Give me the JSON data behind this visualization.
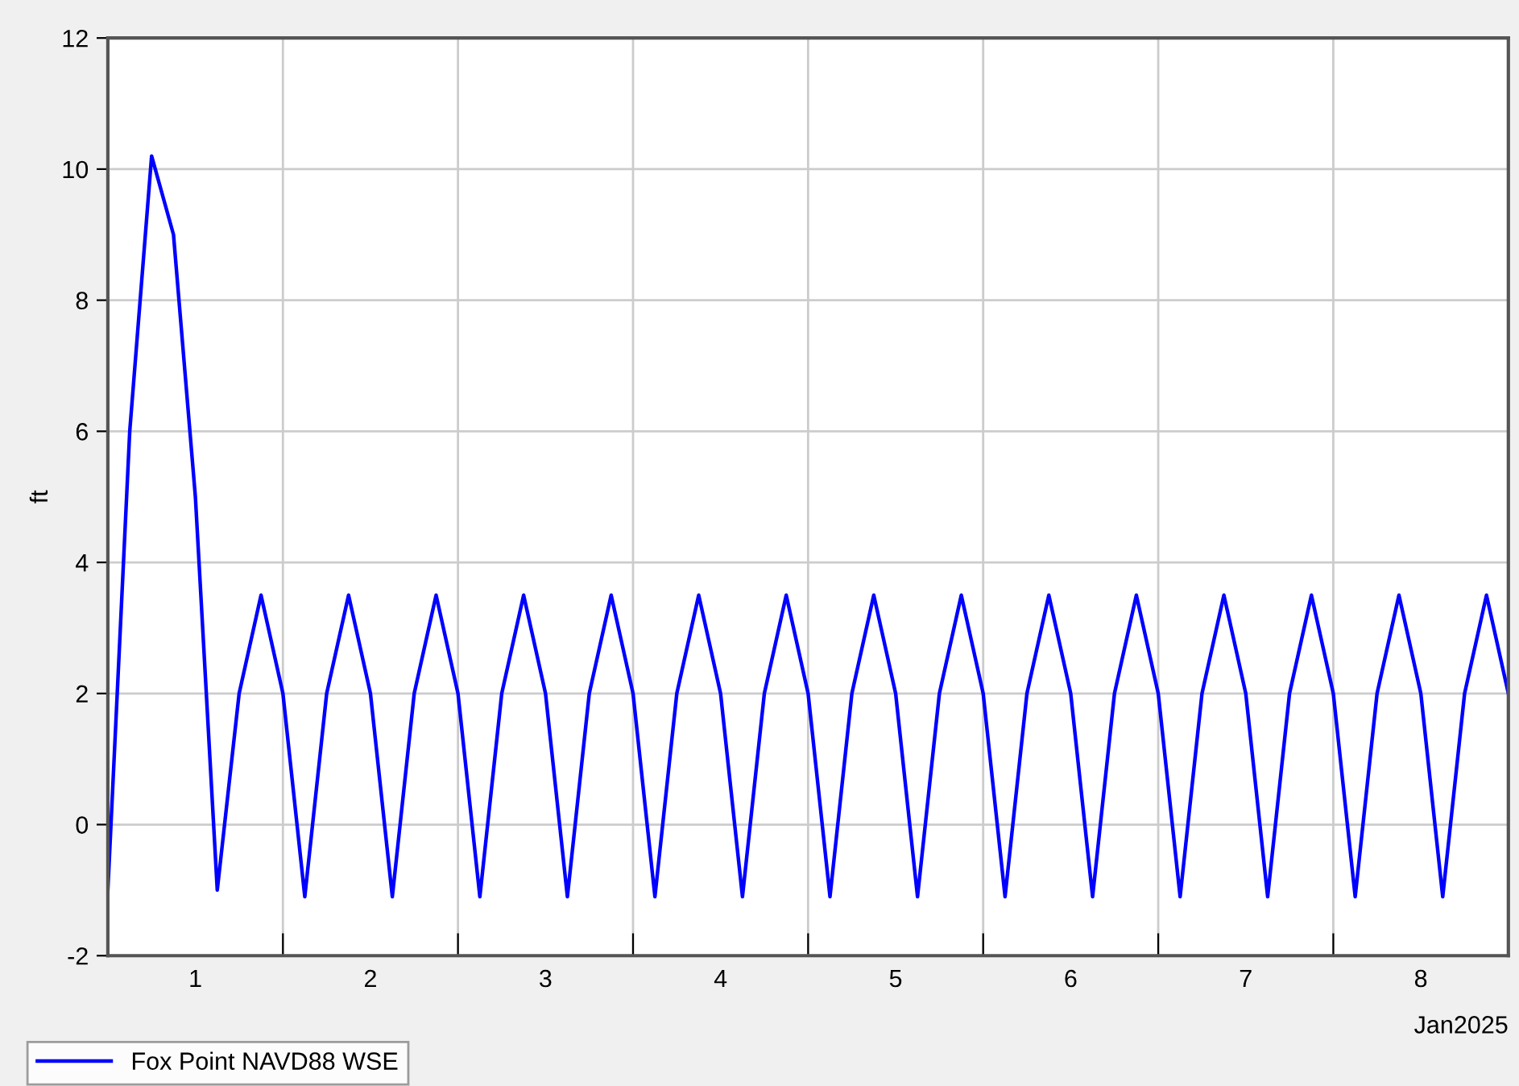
{
  "chart_data": {
    "type": "line",
    "xlabel": "Jan2025",
    "ylabel": "ft",
    "xlim": [
      "2025-01-01T00:00",
      "2025-01-09T00:00"
    ],
    "xticks": [
      {
        "value": "2025-01-01T00:00",
        "label": null
      },
      {
        "value": "2025-01-01T12:00",
        "label": "1"
      },
      {
        "value": "2025-01-02T00:00",
        "label": null
      },
      {
        "value": "2025-01-02T12:00",
        "label": "2"
      },
      {
        "value": "2025-01-03T00:00",
        "label": null
      },
      {
        "value": "2025-01-03T12:00",
        "label": "3"
      },
      {
        "value": "2025-01-04T00:00",
        "label": null
      },
      {
        "value": "2025-01-04T12:00",
        "label": "4"
      },
      {
        "value": "2025-01-05T00:00",
        "label": null
      },
      {
        "value": "2025-01-05T12:00",
        "label": "5"
      },
      {
        "value": "2025-01-06T00:00",
        "label": null
      },
      {
        "value": "2025-01-06T12:00",
        "label": "6"
      },
      {
        "value": "2025-01-07T00:00",
        "label": null
      },
      {
        "value": "2025-01-07T12:00",
        "label": "7"
      },
      {
        "value": "2025-01-08T00:00",
        "label": null
      },
      {
        "value": "2025-01-08T12:00",
        "label": "8"
      },
      {
        "value": "2025-01-09T00:00",
        "label": null
      }
    ],
    "ylim": [
      -2,
      12
    ],
    "yticks": [
      -2,
      0,
      2,
      4,
      6,
      8,
      10,
      12
    ],
    "grid": true,
    "legend": "bottom",
    "marker": "none",
    "line_style": "solid",
    "series": [
      {
        "name": "Fox Point NAVD88 WSE",
        "color": "#0000ff",
        "x": [
          "2025-01-01T00:00",
          "2025-01-01T03:00",
          "2025-01-01T06:00",
          "2025-01-01T09:00",
          "2025-01-01T12:00",
          "2025-01-01T15:00",
          "2025-01-01T18:00",
          "2025-01-01T21:00",
          "2025-01-02T00:00",
          "2025-01-02T03:00",
          "2025-01-02T06:00",
          "2025-01-02T09:00",
          "2025-01-02T12:00",
          "2025-01-02T15:00",
          "2025-01-02T18:00",
          "2025-01-02T21:00",
          "2025-01-03T00:00",
          "2025-01-03T03:00",
          "2025-01-03T06:00",
          "2025-01-03T09:00",
          "2025-01-03T12:00",
          "2025-01-03T15:00",
          "2025-01-03T18:00",
          "2025-01-03T21:00",
          "2025-01-04T00:00",
          "2025-01-04T03:00",
          "2025-01-04T06:00",
          "2025-01-04T09:00",
          "2025-01-04T12:00",
          "2025-01-04T15:00",
          "2025-01-04T18:00",
          "2025-01-04T21:00",
          "2025-01-05T00:00",
          "2025-01-05T03:00",
          "2025-01-05T06:00",
          "2025-01-05T09:00",
          "2025-01-05T12:00",
          "2025-01-05T15:00",
          "2025-01-05T18:00",
          "2025-01-05T21:00",
          "2025-01-06T00:00",
          "2025-01-06T03:00",
          "2025-01-06T06:00",
          "2025-01-06T09:00",
          "2025-01-06T12:00",
          "2025-01-06T15:00",
          "2025-01-06T18:00",
          "2025-01-06T21:00",
          "2025-01-07T00:00",
          "2025-01-07T03:00",
          "2025-01-07T06:00",
          "2025-01-07T09:00",
          "2025-01-07T12:00",
          "2025-01-07T15:00",
          "2025-01-07T18:00",
          "2025-01-07T21:00",
          "2025-01-08T00:00",
          "2025-01-08T03:00",
          "2025-01-08T06:00",
          "2025-01-08T09:00",
          "2025-01-08T12:00",
          "2025-01-08T15:00",
          "2025-01-08T18:00",
          "2025-01-08T21:00",
          "2025-01-09T00:00"
        ],
        "values": [
          -1,
          6,
          10.2,
          9,
          5,
          -1,
          2,
          3.5,
          2,
          -1.1,
          2,
          3.5,
          2,
          -1.1,
          2,
          3.5,
          2,
          -1.1,
          2,
          3.5,
          2,
          -1.1,
          2,
          3.5,
          2,
          -1.1,
          2,
          3.5,
          2,
          -1.1,
          2,
          3.5,
          2,
          -1.1,
          2,
          3.5,
          2,
          -1.1,
          2,
          3.5,
          2,
          -1.1,
          2,
          3.5,
          2,
          -1.1,
          2,
          3.5,
          2,
          -1.1,
          2,
          3.5,
          2,
          -1.1,
          2,
          3.5,
          2,
          -1.1,
          2,
          3.5,
          2,
          -1.1,
          2,
          3.5,
          2
        ]
      }
    ]
  }
}
